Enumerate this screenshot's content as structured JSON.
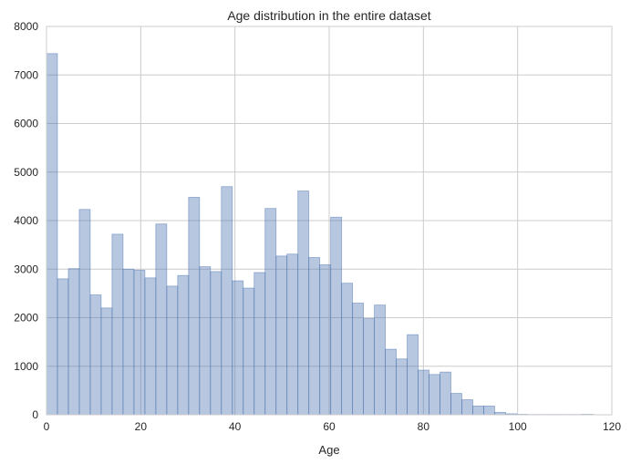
{
  "chart_data": {
    "type": "bar",
    "title": "Age distribution in the entire dataset",
    "xlabel": "Age",
    "ylabel": "",
    "xlim": [
      0,
      120
    ],
    "ylim": [
      0,
      8000
    ],
    "grid": true,
    "x_ticks": [
      0,
      20,
      40,
      60,
      80,
      100,
      120
    ],
    "y_ticks": [
      0,
      1000,
      2000,
      3000,
      4000,
      5000,
      6000,
      7000,
      8000
    ],
    "bin_edges": [
      0,
      2.32,
      4.64,
      6.96,
      9.28,
      11.6,
      13.92,
      16.24,
      18.56,
      20.88,
      23.2,
      25.52,
      27.84,
      30.16,
      32.48,
      34.8,
      37.12,
      39.44,
      41.76,
      44.08,
      46.4,
      48.72,
      51.04,
      53.36,
      55.68,
      58.0,
      60.32,
      62.64,
      64.96,
      67.28,
      69.6,
      71.92,
      74.24,
      76.56,
      78.88,
      81.2,
      83.52,
      85.84,
      88.16,
      90.48,
      92.8,
      95.12,
      97.44,
      99.76,
      102.08,
      104.4,
      106.72,
      109.04,
      111.36,
      113.68,
      116.0
    ],
    "counts": [
      7440,
      2800,
      3010,
      4230,
      2470,
      2200,
      3720,
      3000,
      2980,
      2820,
      3930,
      2650,
      2870,
      4480,
      3050,
      2950,
      4700,
      2760,
      2610,
      2930,
      4250,
      3270,
      3310,
      4610,
      3240,
      3090,
      4070,
      2710,
      2300,
      1980,
      2260,
      1350,
      1150,
      1650,
      920,
      830,
      880,
      440,
      310,
      180,
      180,
      50,
      20,
      10,
      5,
      5,
      5,
      5,
      5,
      10
    ],
    "bar_color": "#4c72b0",
    "bar_opacity": 0.4,
    "background_color": "#ffffff",
    "grid_color": "#cccccc"
  }
}
